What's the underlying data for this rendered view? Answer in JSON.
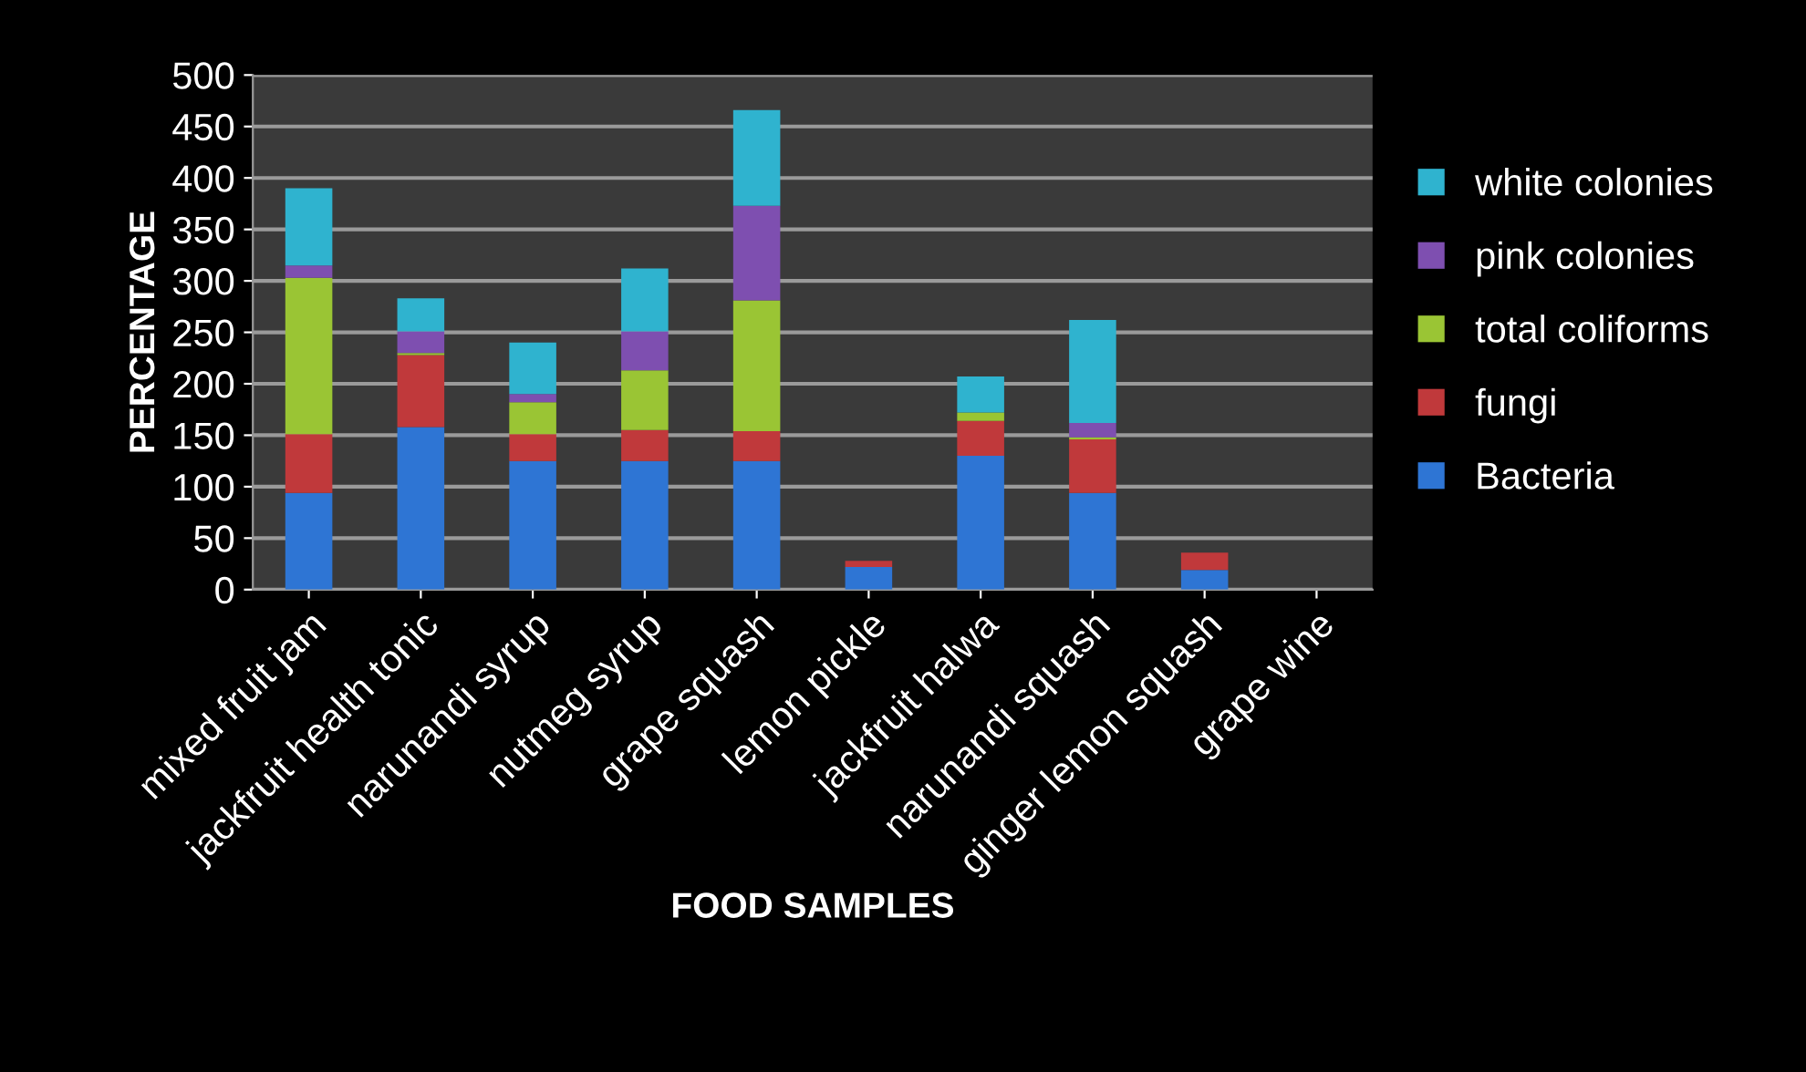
{
  "chart_data": {
    "type": "bar",
    "stacked": true,
    "xlabel": "FOOD SAMPLES",
    "ylabel": "PERCENTAGE",
    "categories": [
      "mixed fruit jam",
      "jackfruit health tonic",
      "narunandi syrup",
      "nutmeg syrup",
      "grape squash",
      "lemon pickle",
      "jackfruit halwa",
      "narunandi squash",
      "ginger lemon squash",
      "grape wine"
    ],
    "series": [
      {
        "name": "Bacteria",
        "color": "#2e75d4",
        "values": [
          94,
          158,
          125,
          125,
          125,
          22,
          130,
          94,
          19,
          0
        ]
      },
      {
        "name": "fungi",
        "color": "#c0393b",
        "values": [
          57,
          70,
          26,
          30,
          29,
          6,
          34,
          52,
          17,
          0
        ]
      },
      {
        "name": "total coliforms",
        "color": "#9ac534",
        "values": [
          152,
          2,
          31,
          58,
          127,
          0,
          8,
          2,
          0,
          0
        ]
      },
      {
        "name": "pink colonies",
        "color": "#7e4fb0",
        "values": [
          12,
          21,
          8,
          38,
          92,
          0,
          0,
          14,
          0,
          0
        ]
      },
      {
        "name": "white colonies",
        "color": "#2fb3cf",
        "values": [
          75,
          32,
          50,
          61,
          93,
          0,
          35,
          100,
          0,
          0
        ]
      }
    ],
    "ylim": [
      0,
      500
    ],
    "yticks": [
      0,
      50,
      100,
      150,
      200,
      250,
      300,
      350,
      400,
      450,
      500
    ],
    "grid": "y",
    "legend": "right"
  }
}
